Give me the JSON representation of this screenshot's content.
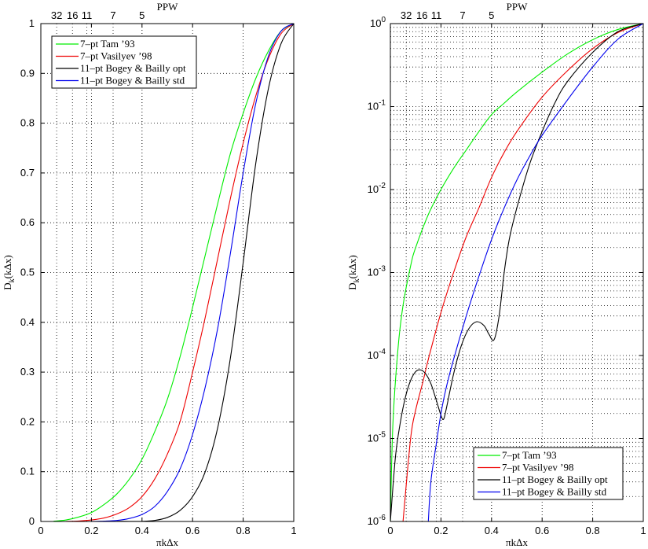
{
  "chart_data": [
    {
      "type": "line",
      "yscale": "linear",
      "xlabel": "πkΔx",
      "ylabel_main": "D",
      "ylabel_sub": "k",
      "ylabel_rest": "(kΔx)",
      "top_axis_label": "PPW",
      "top_ticks": [
        {
          "label": "32",
          "x": 0.0625
        },
        {
          "label": "16",
          "x": 0.125
        },
        {
          "label": "11",
          "x": 0.1818
        },
        {
          "label": "7",
          "x": 0.2857
        },
        {
          "label": "5",
          "x": 0.4
        }
      ],
      "xlim": [
        0,
        1
      ],
      "ylim": [
        0,
        1
      ],
      "xticks": [
        "0",
        "0.2",
        "0.4",
        "0.6",
        "0.8",
        "1"
      ],
      "yticks": [
        "0",
        "0.1",
        "0.2",
        "0.3",
        "0.4",
        "0.5",
        "0.6",
        "0.7",
        "0.8",
        "0.9",
        "1"
      ],
      "grid": true,
      "legend_position": "top-left",
      "series": [
        {
          "name": "7–pt Tam ’93",
          "color": "#00ee00",
          "x": [
            0.05,
            0.1,
            0.15,
            0.2,
            0.25,
            0.3,
            0.35,
            0.4,
            0.45,
            0.5,
            0.55,
            0.6,
            0.65,
            0.7,
            0.75,
            0.8,
            0.85,
            0.9,
            0.95,
            1.0
          ],
          "y": [
            0.0004,
            0.003,
            0.009,
            0.018,
            0.034,
            0.055,
            0.085,
            0.125,
            0.18,
            0.245,
            0.33,
            0.43,
            0.535,
            0.64,
            0.74,
            0.82,
            0.89,
            0.945,
            0.985,
            1.0
          ]
        },
        {
          "name": "7–pt Vasilyev ’98",
          "color": "#ee0000",
          "x": [
            0.1,
            0.15,
            0.2,
            0.25,
            0.3,
            0.35,
            0.4,
            0.45,
            0.5,
            0.55,
            0.6,
            0.65,
            0.7,
            0.75,
            0.8,
            0.85,
            0.9,
            0.95,
            1.0
          ],
          "y": [
            0.0002,
            0.001,
            0.003,
            0.007,
            0.015,
            0.028,
            0.05,
            0.085,
            0.135,
            0.2,
            0.3,
            0.41,
            0.53,
            0.65,
            0.76,
            0.855,
            0.93,
            0.98,
            1.0
          ]
        },
        {
          "name": "11–pt Bogey & Bailly opt",
          "color": "#000000",
          "x": [
            0.3,
            0.35,
            0.4,
            0.45,
            0.5,
            0.55,
            0.6,
            0.65,
            0.7,
            0.75,
            0.8,
            0.85,
            0.9,
            0.95,
            1.0
          ],
          "y": [
            0.0003,
            0.0002,
            0.0002,
            0.002,
            0.008,
            0.022,
            0.05,
            0.1,
            0.19,
            0.33,
            0.52,
            0.72,
            0.87,
            0.96,
            1.0
          ]
        },
        {
          "name": "11–pt Bogey & Bailly std",
          "color": "#0000ee",
          "x": [
            0.2,
            0.25,
            0.3,
            0.35,
            0.4,
            0.45,
            0.5,
            0.55,
            0.6,
            0.65,
            0.7,
            0.75,
            0.8,
            0.85,
            0.9,
            0.95,
            1.0
          ],
          "y": [
            0.0001,
            0.0007,
            0.002,
            0.006,
            0.014,
            0.03,
            0.06,
            0.105,
            0.175,
            0.27,
            0.39,
            0.54,
            0.7,
            0.84,
            0.935,
            0.985,
            1.0
          ]
        }
      ]
    },
    {
      "type": "line",
      "yscale": "log",
      "xlabel": "πkΔx",
      "ylabel_main": "D",
      "ylabel_sub": "k",
      "ylabel_rest": "(kΔx)",
      "top_axis_label": "PPW",
      "top_ticks": [
        {
          "label": "32",
          "x": 0.0625
        },
        {
          "label": "16",
          "x": 0.125
        },
        {
          "label": "11",
          "x": 0.1818
        },
        {
          "label": "7",
          "x": 0.2857
        },
        {
          "label": "5",
          "x": 0.4
        }
      ],
      "xlim": [
        0,
        1
      ],
      "ylim": [
        1e-06,
        1
      ],
      "xticks": [
        "0",
        "0.2",
        "0.4",
        "0.6",
        "0.8",
        "1"
      ],
      "ytick_exponents": [
        "0",
        "-1",
        "-2",
        "-3",
        "-4",
        "-5",
        "-6"
      ],
      "grid": true,
      "legend_position": "bottom-right",
      "series": [
        {
          "name": "7–pt Tam ’93",
          "color": "#00ee00",
          "x": [
            0.0,
            0.01,
            0.03,
            0.05,
            0.08,
            0.1,
            0.15,
            0.2,
            0.25,
            0.3,
            0.35,
            0.4,
            0.45,
            0.5,
            0.6,
            0.7,
            0.8,
            0.9,
            1.0
          ],
          "y": [
            1e-06,
            1.5e-05,
            0.00012,
            0.0004,
            0.0012,
            0.002,
            0.005,
            0.01,
            0.018,
            0.03,
            0.05,
            0.08,
            0.11,
            0.15,
            0.26,
            0.43,
            0.64,
            0.85,
            1.0
          ]
        },
        {
          "name": "7–pt Vasilyev ’98",
          "color": "#ee0000",
          "x": [
            0.05,
            0.08,
            0.1,
            0.13,
            0.15,
            0.2,
            0.25,
            0.3,
            0.35,
            0.4,
            0.45,
            0.5,
            0.6,
            0.7,
            0.8,
            0.9,
            1.0
          ],
          "y": [
            1e-06,
            1e-05,
            2.2e-05,
            5e-05,
            9e-05,
            0.00033,
            0.001,
            0.0027,
            0.006,
            0.014,
            0.028,
            0.05,
            0.13,
            0.27,
            0.5,
            0.78,
            1.0
          ]
        },
        {
          "name": "11–pt Bogey & Bailly opt",
          "color": "#000000",
          "x": [
            0.0,
            0.02,
            0.04,
            0.06,
            0.08,
            0.1,
            0.12,
            0.14,
            0.16,
            0.18,
            0.2,
            0.21,
            0.22,
            0.25,
            0.28,
            0.31,
            0.34,
            0.37,
            0.39,
            0.41,
            0.43,
            0.45,
            0.47,
            0.5,
            0.55,
            0.6,
            0.65,
            0.7,
            0.8,
            0.9,
            1.0
          ],
          "y": [
            1e-06,
            6e-06,
            1.6e-05,
            3.2e-05,
            5e-05,
            6.4e-05,
            6.7e-05,
            6e-05,
            4.6e-05,
            3e-05,
            1.9e-05,
            1.7e-05,
            2.2e-05,
            6e-05,
            0.00013,
            0.00021,
            0.000255,
            0.00023,
            0.00018,
            0.000155,
            0.0003,
            0.001,
            0.0025,
            0.006,
            0.02,
            0.05,
            0.11,
            0.2,
            0.45,
            0.8,
            1.0
          ]
        },
        {
          "name": "11–pt Bogey & Bailly std",
          "color": "#0000ee",
          "x": [
            0.15,
            0.16,
            0.18,
            0.2,
            0.22,
            0.25,
            0.3,
            0.35,
            0.4,
            0.45,
            0.5,
            0.55,
            0.6,
            0.7,
            0.8,
            0.9,
            1.0
          ],
          "y": [
            1e-06,
            3e-06,
            8e-06,
            2e-05,
            4e-05,
            9e-05,
            0.0003,
            0.0009,
            0.0025,
            0.006,
            0.013,
            0.025,
            0.045,
            0.12,
            0.3,
            0.65,
            1.0
          ]
        }
      ]
    }
  ]
}
